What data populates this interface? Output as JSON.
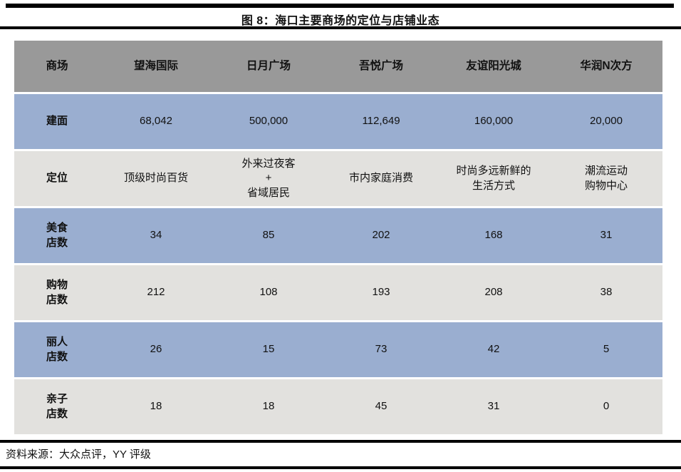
{
  "figure": {
    "title": "图 8：海口主要商场的定位与店铺业态",
    "source_note": "资料来源：大众点评，YY 评级"
  },
  "table": {
    "header": [
      "商场",
      "望海国际",
      "日月广场",
      "吾悦广场",
      "友谊阳光城",
      "华润N次方"
    ],
    "rows": [
      {
        "label": "建面",
        "values": [
          "68,042",
          "500,000",
          "112,649",
          "160,000",
          "20,000"
        ]
      },
      {
        "label": "定位",
        "values": [
          "顶级时尚百货",
          "外来过夜客\n+\n省域居民",
          "市内家庭消费",
          "时尚多远新鲜的\n生活方式",
          "潮流运动\n购物中心"
        ]
      },
      {
        "label": "美食\n店数",
        "values": [
          "34",
          "85",
          "202",
          "168",
          "31"
        ]
      },
      {
        "label": "购物\n店数",
        "values": [
          "212",
          "108",
          "193",
          "208",
          "38"
        ]
      },
      {
        "label": "丽人\n店数",
        "values": [
          "26",
          "15",
          "73",
          "42",
          "5"
        ]
      },
      {
        "label": "亲子\n店数",
        "values": [
          "18",
          "18",
          "45",
          "31",
          "0"
        ]
      }
    ]
  },
  "colors": {
    "header_bg": "#999999",
    "row_blue_bg": "#9aaed0",
    "row_gray_bg": "#e2e1de",
    "rule_color": "#000000",
    "text": "#111111"
  }
}
